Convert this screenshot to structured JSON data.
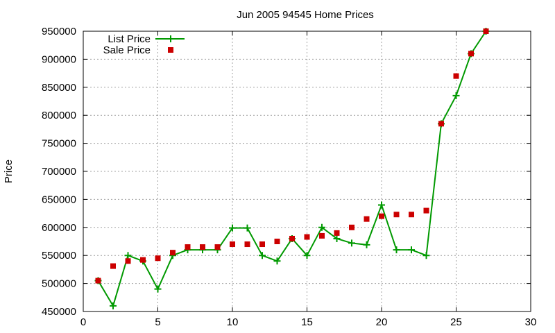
{
  "chart_data": {
    "type": "scatter",
    "title": "Jun 2005 94545 Home Prices",
    "xlabel": "",
    "ylabel": "Price",
    "xlim": [
      0,
      30
    ],
    "ylim": [
      450000,
      950000
    ],
    "xticks": [
      "0",
      "5",
      "10",
      "15",
      "20",
      "25",
      "30"
    ],
    "yticks": [
      "450000",
      "500000",
      "550000",
      "600000",
      "650000",
      "700000",
      "750000",
      "800000",
      "850000",
      "900000",
      "950000"
    ],
    "grid": true,
    "legend_position": "top-left",
    "series": [
      {
        "name": "List Price",
        "style": "line-with-plus-markers",
        "color": "#009900",
        "x": [
          1,
          2,
          3,
          4,
          5,
          6,
          7,
          8,
          9,
          10,
          11,
          12,
          13,
          14,
          15,
          16,
          17,
          18,
          19,
          20,
          21,
          22,
          23,
          24,
          25,
          26,
          27
        ],
        "y": [
          505000,
          460000,
          550000,
          540000,
          490000,
          550000,
          560000,
          560000,
          560000,
          599000,
          599000,
          550000,
          540000,
          580000,
          550000,
          600000,
          580000,
          572000,
          569000,
          640000,
          560000,
          560000,
          550000,
          785000,
          835000,
          910000,
          950000
        ]
      },
      {
        "name": "Sale Price",
        "style": "square-markers",
        "color": "#cc0000",
        "x": [
          1,
          2,
          3,
          4,
          5,
          6,
          7,
          8,
          9,
          10,
          11,
          12,
          13,
          14,
          15,
          16,
          17,
          18,
          19,
          20,
          21,
          22,
          23,
          24,
          25,
          26,
          27
        ],
        "y": [
          505000,
          531000,
          540000,
          542000,
          545000,
          555000,
          565000,
          565000,
          565000,
          570000,
          570000,
          570000,
          575000,
          580000,
          583000,
          585000,
          590000,
          600000,
          615000,
          620000,
          623000,
          623000,
          630000,
          785000,
          870000,
          910000,
          950000
        ]
      }
    ]
  }
}
